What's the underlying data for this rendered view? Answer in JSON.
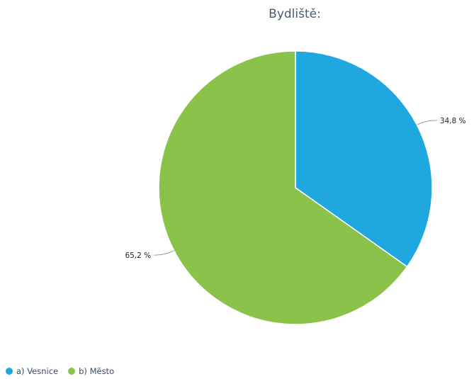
{
  "chart_data": {
    "type": "pie",
    "title": "Bydliště:",
    "slices": [
      {
        "label": "a) Vesnice",
        "value": 34.8,
        "value_label": "34,8 %",
        "color": "#1fa8e0"
      },
      {
        "label": "b) Město",
        "value": 65.2,
        "value_label": "65,2 %",
        "color": "#8bc34a"
      }
    ],
    "legend_position": "bottom-left",
    "start_angle": "12 o'clock",
    "direction": "clockwise"
  }
}
